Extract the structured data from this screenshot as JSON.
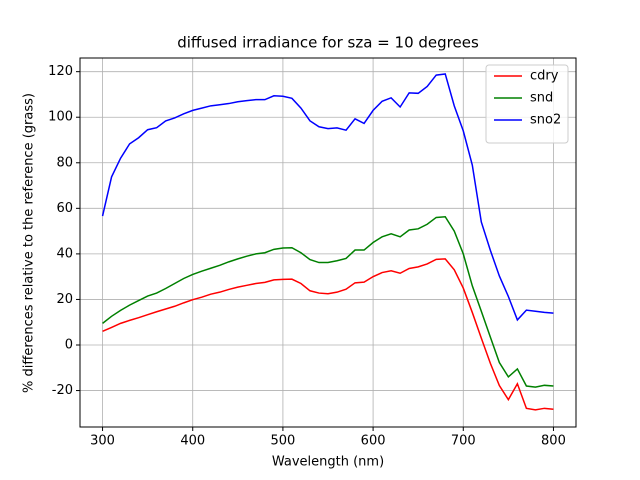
{
  "chart_data": {
    "type": "line",
    "title": "diffused irradiance for sza = 10 degrees",
    "xlabel": "Wavelength (nm)",
    "ylabel": "% differences relative to the reference (grass)",
    "x": [
      300,
      310,
      320,
      330,
      340,
      350,
      360,
      370,
      380,
      390,
      400,
      410,
      420,
      430,
      440,
      450,
      460,
      470,
      480,
      490,
      500,
      510,
      520,
      530,
      540,
      550,
      560,
      570,
      580,
      590,
      600,
      610,
      620,
      630,
      640,
      650,
      660,
      670,
      680,
      690,
      700,
      710,
      720,
      730,
      740,
      750,
      760,
      770,
      780,
      790,
      800
    ],
    "series": [
      {
        "name": "cdry",
        "color": "#ff0000",
        "values": [
          6,
          7.7,
          9.5,
          10.8,
          12,
          13.3,
          14.6,
          15.8,
          17,
          18.5,
          19.9,
          21,
          22.3,
          23.2,
          24.4,
          25.4,
          26.2,
          27,
          27.5,
          28.6,
          28.8,
          28.9,
          27,
          23.8,
          22.8,
          22.5,
          23.2,
          24.5,
          27.3,
          27.6,
          30,
          31.8,
          32.6,
          31.5,
          33.6,
          34.3,
          35.6,
          37.6,
          37.8,
          33,
          25,
          14.3,
          3,
          -8,
          -17.8,
          -24,
          -17,
          -27.8,
          -28.5,
          -27.8,
          -28.2
        ]
      },
      {
        "name": "snd",
        "color": "#008000",
        "values": [
          9.5,
          12.6,
          15.2,
          17.5,
          19.5,
          21.5,
          22.8,
          24.8,
          27,
          29.2,
          31,
          32.4,
          33.7,
          35,
          36.5,
          37.8,
          39,
          40,
          40.5,
          42,
          42.6,
          42.7,
          40.5,
          37.5,
          36.2,
          36.2,
          37,
          38,
          41.7,
          41.7,
          45,
          47.5,
          48.8,
          47.5,
          50.5,
          51,
          53,
          56,
          56.3,
          50,
          40,
          26,
          14.8,
          3.5,
          -7.7,
          -14,
          -10.5,
          -18,
          -18.5,
          -17.7,
          -18
        ]
      },
      {
        "name": "sno2",
        "color": "#0000ff",
        "values": [
          56.6,
          73.8,
          82,
          88.3,
          91,
          94.5,
          95.4,
          98.4,
          99.7,
          101.5,
          103,
          104,
          105,
          105.5,
          106,
          106.8,
          107.3,
          107.7,
          107.7,
          109.4,
          109.2,
          108.3,
          104,
          98.4,
          95.8,
          95,
          95.3,
          94.3,
          99.3,
          97.3,
          103,
          107,
          108.5,
          104.5,
          110.7,
          110.5,
          113.5,
          118.5,
          119,
          105,
          94,
          79,
          54,
          41.6,
          30.3,
          21.3,
          11,
          15.3,
          14.8,
          14.3,
          14
        ]
      }
    ],
    "xlim": [
      275,
      825
    ],
    "xticks": [
      300,
      400,
      500,
      600,
      700,
      800
    ],
    "ylim": [
      -36,
      126
    ],
    "yticks": [
      -20,
      0,
      20,
      40,
      60,
      80,
      100,
      120
    ],
    "grid": true,
    "legend": "upper right"
  }
}
